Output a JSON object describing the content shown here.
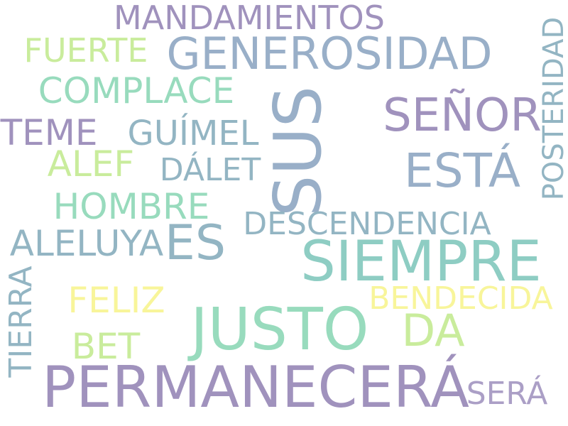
{
  "words": {
    "permanecera": "PERMANECERÁ",
    "justo": "JUSTO",
    "siempre": "SIEMPRE",
    "sus": "SUS",
    "generosidad": "GENEROSIDAD",
    "esta": "ESTÁ",
    "senor": "SEÑOR",
    "es": "ES",
    "da": "DA",
    "mandamientos": "MANDAMIENTOS",
    "descendencia": "DESCENDENCIA",
    "complace": "COMPLACE",
    "posteridad": "POSTERIDAD",
    "bendecida": "BENDECIDA",
    "hombre": "HOMBRE",
    "aleluya": "ALELUYA",
    "guimel": "GUÍMEL",
    "feliz": "FELIZ",
    "fuerte": "FUERTE",
    "teme": "TEME",
    "alef": "ALEF",
    "dalet": "DÁLET",
    "tierra": "TIERRA",
    "bet": "BET",
    "sera": "SERÁ"
  },
  "colors": {
    "purple": "#a092bd",
    "steel_blue": "#99afc8",
    "teal": "#8ecdc3",
    "mint": "#98dbbd",
    "lime": "#c9ec9c",
    "yellow": "#f8f59a",
    "slate": "#93b5c3",
    "lilac": "#ab9fc6"
  }
}
